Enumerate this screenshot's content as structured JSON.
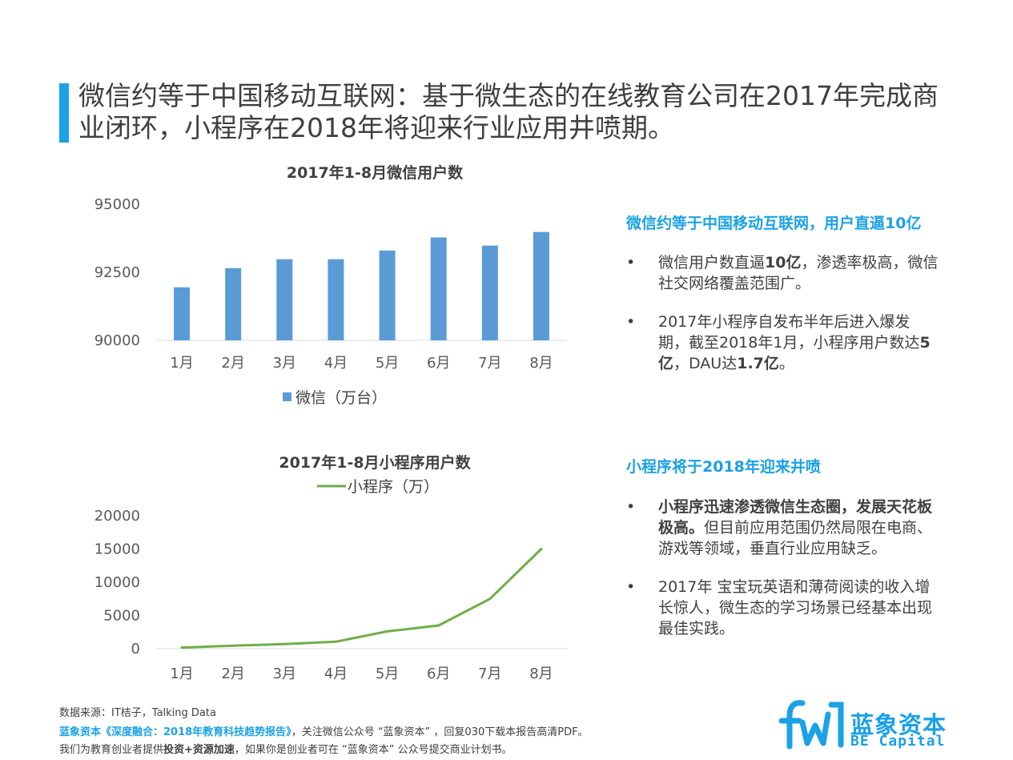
{
  "slide_title": "微信约等于中国移动互联网：基于微生态的在线教育公司在2017年完成商业闭环，小程序在2018年将迎来行业应用井喷期。",
  "colors": {
    "accent": "#1aa1e6",
    "bar": "#5b9bd5",
    "line": "#70ad47"
  },
  "chart_data": [
    {
      "type": "bar",
      "title": "2017年1-8月微信用户数",
      "categories": [
        "1月",
        "2月",
        "3月",
        "4月",
        "5月",
        "6月",
        "7月",
        "8月"
      ],
      "series": [
        {
          "name": "微信（万台）",
          "values": [
            91950,
            92650,
            92980,
            92980,
            93300,
            93780,
            93480,
            93980
          ]
        }
      ],
      "yticks": [
        "90000",
        "92500",
        "95000"
      ],
      "ylim": [
        90000,
        95000
      ],
      "legend": "bottom"
    },
    {
      "type": "line",
      "title": "2017年1-8月小程序用户数",
      "categories": [
        "1月",
        "2月",
        "3月",
        "4月",
        "5月",
        "6月",
        "7月",
        "8月"
      ],
      "series": [
        {
          "name": "小程序（万）",
          "values": [
            170,
            450,
            700,
            1050,
            2600,
            3500,
            7500,
            15000
          ]
        }
      ],
      "yticks": [
        "0",
        "5000",
        "10000",
        "15000",
        "20000"
      ],
      "ylim": [
        0,
        20000
      ],
      "legend": "top"
    }
  ],
  "section1": {
    "heading": "微信约等于中国移动互联网，用户直逼10亿",
    "b1_p1": "微信用户数直逼",
    "b1_bold": "10亿",
    "b1_p2": "，渗透率极高，微信社交网络覆盖范围广。",
    "b2_p1": "2017年小程序自发布半年后进入爆发期，截至2018年1月，小程序用户数达",
    "b2_bold1": "5亿",
    "b2_p2": "，DAU达",
    "b2_bold2": "1.7亿",
    "b2_p3": "。"
  },
  "section2": {
    "heading": "小程序将于2018年迎来井喷",
    "b1_bold": "小程序迅速渗透微信生态圈，发展天花板极高。",
    "b1_p1": "但目前应用范围仍然局限在电商、游戏等领域，垂直行业应用缺乏。",
    "b2_p1": "2017年 宝宝玩英语和薄荷阅读的收入增长惊人，微生态的学习场景已经基本出现最佳实践。"
  },
  "bullet_char": "•",
  "footer": {
    "source": "数据来源：IT桔子，Talking Data",
    "report_name": "蓝象资本《深度融合：2018年教育科技趋势报告》",
    "report_rest": "，关注微信公众号 “蓝象资本” ，回复030下载本报告高清PDF。",
    "line3_p1": "我们为教育创业者提供",
    "line3_bold": "投资+资源加速",
    "line3_p2": "，如果你是创业者可在 “蓝象资本” 公众号提交商业计划书。"
  },
  "logo": {
    "cn": "蓝象资本",
    "en": "BE Capital"
  }
}
